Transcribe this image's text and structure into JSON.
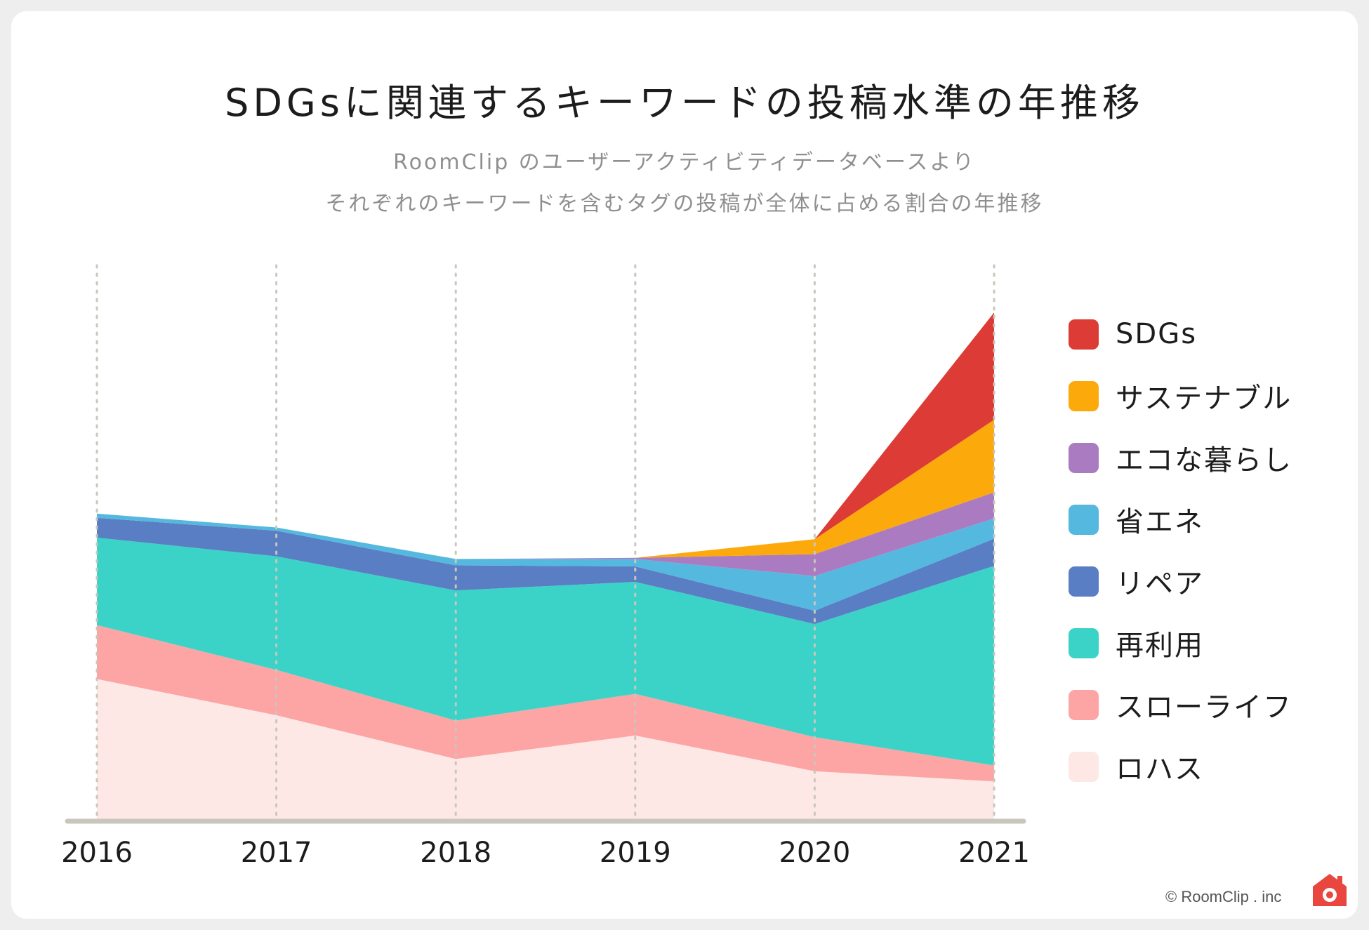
{
  "header": {
    "title": "SDGsに関連するキーワードの投稿水準の年推移",
    "subtitle_line1": "RoomClip のユーザーアクティビティデータベースより",
    "subtitle_line2": "それぞれのキーワードを含むタグの投稿が全体に占める割合の年推移"
  },
  "chart_data": {
    "type": "area",
    "stacked": true,
    "title": "SDGsに関連するキーワードの投稿水準の年推移",
    "xlabel": "",
    "ylabel": "",
    "x": [
      "2016",
      "2017",
      "2018",
      "2019",
      "2020",
      "2021"
    ],
    "ylim": [
      0,
      100
    ],
    "grid": "vertical dotted lines at each year",
    "legend_position": "right",
    "series": [
      {
        "name": "ロハス",
        "color": "#fde8e6",
        "values": [
          26.4,
          19.6,
          11.4,
          15.8,
          9.1,
          7.2
        ]
      },
      {
        "name": "スローライフ",
        "color": "#fca5a4",
        "values": [
          10.1,
          8.5,
          7.2,
          7.8,
          6.4,
          3.0
        ]
      },
      {
        "name": "再利用",
        "color": "#3bd3c7",
        "values": [
          16.4,
          21.3,
          24.4,
          21.0,
          21.2,
          37.4
        ]
      },
      {
        "name": "リペア",
        "color": "#5a7ec3",
        "values": [
          3.7,
          4.8,
          4.7,
          2.9,
          2.5,
          5.1
        ]
      },
      {
        "name": "省エネ",
        "color": "#55b8df",
        "values": [
          0.8,
          0.6,
          1.2,
          1.4,
          6.5,
          3.8
        ]
      },
      {
        "name": "エコな暮らし",
        "color": "#aa7bc1",
        "values": [
          0,
          0,
          0,
          0.2,
          4.1,
          4.9
        ]
      },
      {
        "name": "サステナブル",
        "color": "#fca90c",
        "values": [
          0,
          0,
          0,
          0,
          2.8,
          13.6
        ]
      },
      {
        "name": "SDGs",
        "color": "#dd3b35",
        "values": [
          0,
          0,
          0,
          0,
          0,
          20.1
        ]
      }
    ]
  },
  "footer": {
    "credit": "© RoomClip . inc"
  },
  "colors": {
    "logo": "#e8463f",
    "baseline": "#c9c7bd",
    "gridline": "#c9c7bd"
  }
}
